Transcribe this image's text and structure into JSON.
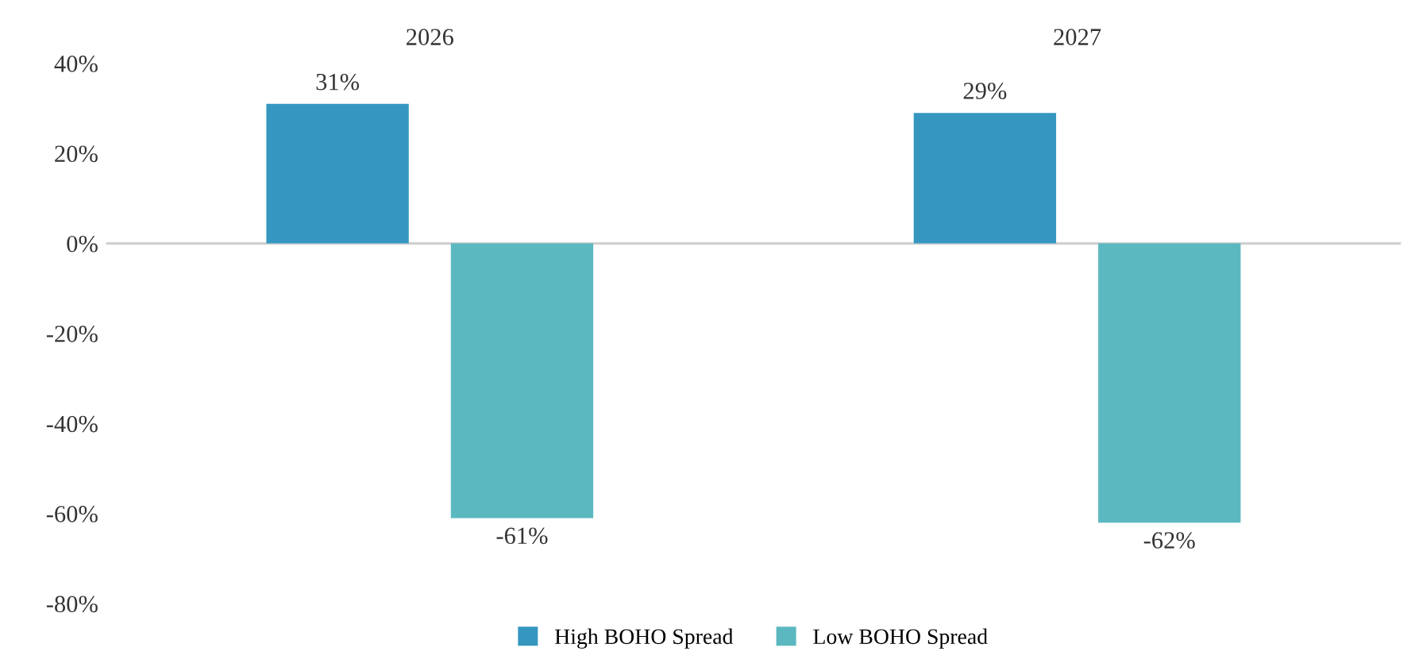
{
  "chart_data": {
    "type": "bar",
    "categories": [
      "2026",
      "2027"
    ],
    "series": [
      {
        "name": "High BOHO Spread",
        "color": "#3597c0",
        "values": [
          31,
          29
        ],
        "value_labels": [
          "31%",
          "29%"
        ]
      },
      {
        "name": "Low BOHO Spread",
        "color": "#5bb8c0",
        "values": [
          -61,
          -62
        ],
        "value_labels": [
          "-61%",
          "-62%"
        ]
      }
    ],
    "ylim": [
      -80,
      40
    ],
    "yticks": [
      {
        "value": -80,
        "label": "-80%"
      },
      {
        "value": -60,
        "label": "-60%"
      },
      {
        "value": -40,
        "label": "-40%"
      },
      {
        "value": -20,
        "label": "-20%"
      },
      {
        "value": 0,
        "label": "0%"
      },
      {
        "value": 20,
        "label": "20%"
      },
      {
        "value": 40,
        "label": "40%"
      }
    ],
    "grid": false,
    "ref_lines": [
      {
        "axis": "y",
        "value": 0,
        "color": "#d0d0d0"
      }
    ],
    "legend": "bottom"
  }
}
